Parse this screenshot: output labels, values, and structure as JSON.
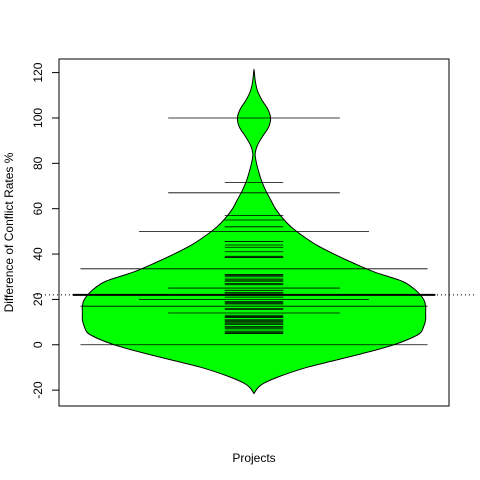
{
  "chart_data": {
    "type": "beanplot",
    "title": "",
    "xlabel": "Projects",
    "ylabel": "Difference of Conflict Rates %",
    "ylim": [
      -27,
      126
    ],
    "yticks": [
      -20,
      0,
      20,
      40,
      60,
      80,
      100,
      120
    ],
    "grid": false,
    "legend": "none",
    "fill_color": "#00ff00",
    "outline_color": "#000000",
    "overall_mean": 22,
    "group_mean": 22,
    "density_profile": [
      {
        "y": -21.5,
        "w": 0.0
      },
      {
        "y": -19,
        "w": 0.02
      },
      {
        "y": -17,
        "w": 0.05
      },
      {
        "y": -14,
        "w": 0.13
      },
      {
        "y": -10,
        "w": 0.27
      },
      {
        "y": -7,
        "w": 0.41
      },
      {
        "y": -4,
        "w": 0.55
      },
      {
        "y": -1,
        "w": 0.68
      },
      {
        "y": 2,
        "w": 0.78
      },
      {
        "y": 5,
        "w": 0.85
      },
      {
        "y": 8,
        "w": 0.87
      },
      {
        "y": 11,
        "w": 0.88
      },
      {
        "y": 14,
        "w": 0.88
      },
      {
        "y": 17,
        "w": 0.88
      },
      {
        "y": 20,
        "w": 0.87
      },
      {
        "y": 24,
        "w": 0.83
      },
      {
        "y": 28,
        "w": 0.76
      },
      {
        "y": 32,
        "w": 0.62
      },
      {
        "y": 36,
        "w": 0.51
      },
      {
        "y": 40,
        "w": 0.41
      },
      {
        "y": 44,
        "w": 0.32
      },
      {
        "y": 48,
        "w": 0.25
      },
      {
        "y": 52,
        "w": 0.19
      },
      {
        "y": 56,
        "w": 0.145
      },
      {
        "y": 60,
        "w": 0.11
      },
      {
        "y": 64,
        "w": 0.085
      },
      {
        "y": 68,
        "w": 0.06
      },
      {
        "y": 72,
        "w": 0.04
      },
      {
        "y": 76,
        "w": 0.025
      },
      {
        "y": 80,
        "w": 0.013
      },
      {
        "y": 84,
        "w": 0.006
      },
      {
        "y": 88,
        "w": 0.018
      },
      {
        "y": 92,
        "w": 0.045
      },
      {
        "y": 96,
        "w": 0.075
      },
      {
        "y": 100,
        "w": 0.085
      },
      {
        "y": 104,
        "w": 0.07
      },
      {
        "y": 108,
        "w": 0.04
      },
      {
        "y": 112,
        "w": 0.018
      },
      {
        "y": 116,
        "w": 0.007
      },
      {
        "y": 119,
        "w": 0.003
      },
      {
        "y": 121.5,
        "w": 0.0
      }
    ],
    "long_lines": [
      {
        "y": 100,
        "w": 0.44
      },
      {
        "y": 67,
        "w": 0.44
      },
      {
        "y": 50,
        "w": 0.59
      },
      {
        "y": 33.5,
        "w": 0.89
      },
      {
        "y": 25,
        "w": 0.44
      },
      {
        "y": 20,
        "w": 0.59
      },
      {
        "y": 17,
        "w": 0.89
      },
      {
        "y": 14,
        "w": 0.44
      },
      {
        "y": 0,
        "w": 0.89
      }
    ],
    "short_lines": [
      71.5,
      57,
      55,
      52,
      45.5,
      44,
      43,
      41,
      39,
      38.5,
      31,
      30.5,
      30,
      29,
      28.5,
      28,
      27,
      26.5,
      24,
      23,
      22.5,
      21,
      19,
      18.5,
      18,
      16,
      15.5,
      13,
      12.5,
      12,
      11,
      10.5,
      10,
      9.5,
      9,
      8,
      7.5,
      7,
      6,
      5.5,
      5
    ],
    "short_line_halfwidth": 0.15
  }
}
